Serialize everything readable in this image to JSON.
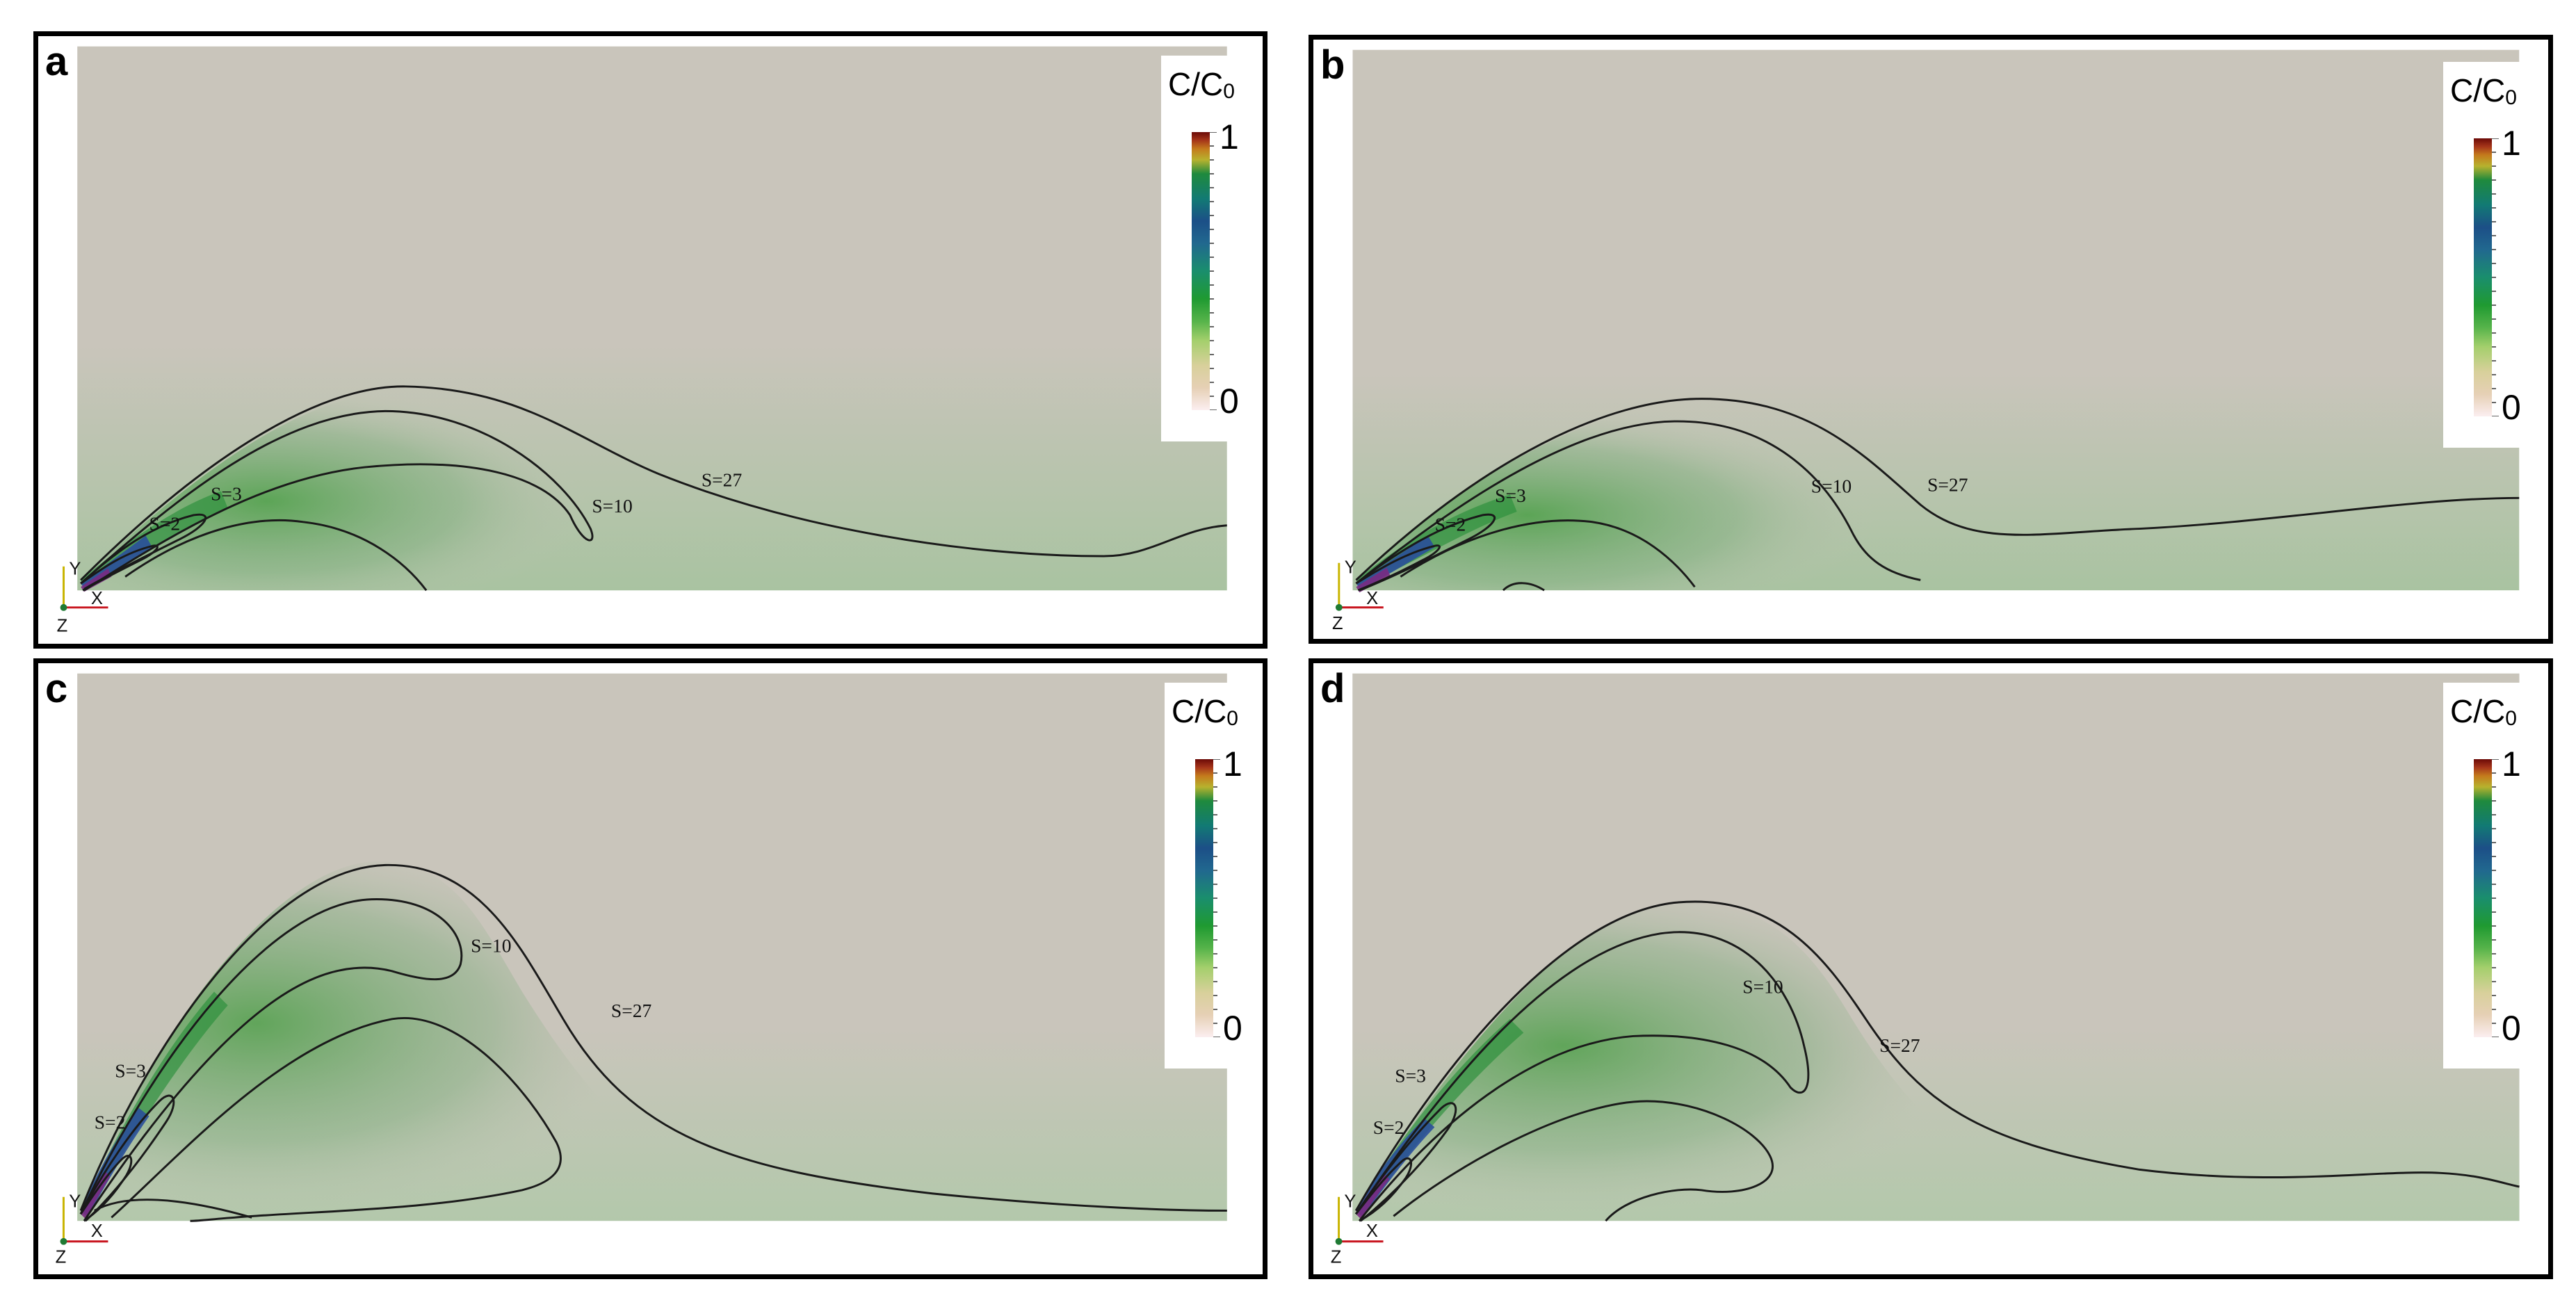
{
  "colorbar": {
    "title_main": "C/C",
    "title_sub": "0",
    "max_label": "1",
    "min_label": "0"
  },
  "axes": {
    "y_label": "Y",
    "x_label": "X",
    "z_label": "Z"
  },
  "panels": [
    {
      "letter": "a",
      "contours": [
        "S=2",
        "S=3",
        "S=10",
        "S=27"
      ]
    },
    {
      "letter": "b",
      "contours": [
        "S=2",
        "S=3",
        "S=10",
        "S=27"
      ]
    },
    {
      "letter": "c",
      "contours": [
        "S=2",
        "S=3",
        "S=10",
        "S=27"
      ]
    },
    {
      "letter": "d",
      "contours": [
        "S=2",
        "S=3",
        "S=10",
        "S=27"
      ]
    }
  ],
  "colors": {
    "background_field": "#c9c5bb",
    "plume_green": "#3e9a3a",
    "contour_line": "#1a1a1a",
    "y_axis": "#c8b400",
    "x_axis": "#c8141e",
    "z_axis": "#1f7a33"
  }
}
